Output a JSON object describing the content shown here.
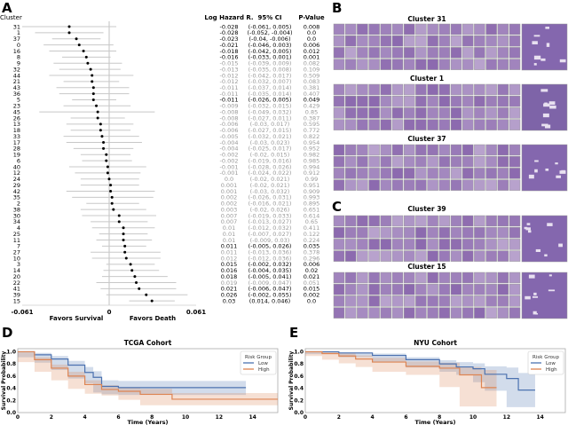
{
  "panel_labels": {
    "a": "A",
    "b": "B",
    "c": "C",
    "d": "D",
    "e": "E"
  },
  "colors": {
    "low": "#4c72b0",
    "high": "#dd8452",
    "significant_text": "#000000",
    "nonsignificant_text": "#9a9a9a",
    "whisker": "#c8c8c8",
    "tissue": "#8a6bb0"
  },
  "chart_data": [
    {
      "type": "forest",
      "row_header": "Cluster",
      "columns": [
        "Log Hazard R.",
        "95% CI",
        "P-Value"
      ],
      "xlim": [
        -0.061,
        0.061
      ],
      "xticks": [
        "-0.061",
        "0",
        "0.061"
      ],
      "annotations": {
        "left": "Favors Survival",
        "right": "Favors Death"
      },
      "rows": [
        {
          "cluster": "31",
          "lhr": -0.028,
          "lo": -0.061,
          "hi": 0.005,
          "p": "0.008",
          "ci": "(-0.061, 0.005)",
          "lhr_text": "-0.028",
          "sig": true
        },
        {
          "cluster": "1",
          "lhr": -0.028,
          "lo": -0.052,
          "hi": -0.004,
          "p": "0.0",
          "ci": "(-0.052, -0.004)",
          "lhr_text": "-0.028",
          "sig": true
        },
        {
          "cluster": "37",
          "lhr": -0.023,
          "lo": -0.04,
          "hi": -0.006,
          "p": "0.0",
          "ci": "(-0.04, -0.006)",
          "lhr_text": "-0.023",
          "sig": true
        },
        {
          "cluster": "0",
          "lhr": -0.021,
          "lo": -0.046,
          "hi": 0.003,
          "p": "0.006",
          "ci": "(-0.046, 0.003)",
          "lhr_text": "-0.021",
          "sig": true
        },
        {
          "cluster": "16",
          "lhr": -0.018,
          "lo": -0.042,
          "hi": 0.005,
          "p": "0.012",
          "ci": "(-0.042, 0.005)",
          "lhr_text": "-0.018",
          "sig": true
        },
        {
          "cluster": "8",
          "lhr": -0.016,
          "lo": -0.033,
          "hi": 0.001,
          "p": "0.001",
          "ci": "(-0.033, 0.001)",
          "lhr_text": "-0.016",
          "sig": true
        },
        {
          "cluster": "9",
          "lhr": -0.015,
          "lo": -0.039,
          "hi": 0.009,
          "p": "0.082",
          "ci": "(-0.039, 0.009)",
          "lhr_text": "-0.015",
          "sig": false
        },
        {
          "cluster": "32",
          "lhr": -0.013,
          "lo": -0.035,
          "hi": 0.008,
          "p": "0.109",
          "ci": "(-0.035, 0.008)",
          "lhr_text": "-0.013",
          "sig": false
        },
        {
          "cluster": "44",
          "lhr": -0.012,
          "lo": -0.042,
          "hi": 0.017,
          "p": "0.509",
          "ci": "(-0.042, 0.017)",
          "lhr_text": "-0.012",
          "sig": false
        },
        {
          "cluster": "21",
          "lhr": -0.012,
          "lo": -0.032,
          "hi": 0.007,
          "p": "0.083",
          "ci": "(-0.032, 0.007)",
          "lhr_text": "-0.012",
          "sig": false
        },
        {
          "cluster": "43",
          "lhr": -0.011,
          "lo": -0.037,
          "hi": 0.014,
          "p": "0.381",
          "ci": "(-0.037, 0.014)",
          "lhr_text": "-0.011",
          "sig": false
        },
        {
          "cluster": "36",
          "lhr": -0.011,
          "lo": -0.035,
          "hi": 0.014,
          "p": "0.407",
          "ci": "(-0.035, 0.014)",
          "lhr_text": "-0.011",
          "sig": false
        },
        {
          "cluster": "5",
          "lhr": -0.011,
          "lo": -0.026,
          "hi": 0.005,
          "p": "0.049",
          "ci": "(-0.026, 0.005)",
          "lhr_text": "-0.011",
          "sig": true
        },
        {
          "cluster": "23",
          "lhr": -0.009,
          "lo": -0.032,
          "hi": 0.015,
          "p": "0.429",
          "ci": "(-0.032, 0.015)",
          "lhr_text": "-0.009",
          "sig": false
        },
        {
          "cluster": "45",
          "lhr": -0.008,
          "lo": -0.049,
          "hi": 0.032,
          "p": "0.85",
          "ci": "(-0.049, 0.032)",
          "lhr_text": "-0.008",
          "sig": false
        },
        {
          "cluster": "26",
          "lhr": -0.008,
          "lo": -0.027,
          "hi": 0.011,
          "p": "0.387",
          "ci": "(-0.027, 0.011)",
          "lhr_text": "-0.008",
          "sig": false
        },
        {
          "cluster": "13",
          "lhr": -0.006,
          "lo": -0.03,
          "hi": 0.017,
          "p": "0.595",
          "ci": "(-0.03, 0.017)",
          "lhr_text": "-0.006",
          "sig": false
        },
        {
          "cluster": "18",
          "lhr": -0.006,
          "lo": -0.027,
          "hi": 0.015,
          "p": "0.772",
          "ci": "(-0.027, 0.015)",
          "lhr_text": "-0.006",
          "sig": false
        },
        {
          "cluster": "33",
          "lhr": -0.005,
          "lo": -0.032,
          "hi": 0.021,
          "p": "0.822",
          "ci": "(-0.032, 0.021)",
          "lhr_text": "-0.005",
          "sig": false
        },
        {
          "cluster": "17",
          "lhr": -0.004,
          "lo": -0.03,
          "hi": 0.023,
          "p": "0.954",
          "ci": "(-0.03, 0.023)",
          "lhr_text": "-0.004",
          "sig": false
        },
        {
          "cluster": "28",
          "lhr": -0.004,
          "lo": -0.025,
          "hi": 0.017,
          "p": "0.952",
          "ci": "(-0.025, 0.017)",
          "lhr_text": "-0.004",
          "sig": false
        },
        {
          "cluster": "19",
          "lhr": -0.002,
          "lo": -0.02,
          "hi": 0.015,
          "p": "0.982",
          "ci": "(-0.02, 0.015)",
          "lhr_text": "-0.002",
          "sig": false
        },
        {
          "cluster": "6",
          "lhr": -0.002,
          "lo": -0.019,
          "hi": 0.016,
          "p": "0.985",
          "ci": "(-0.019, 0.016)",
          "lhr_text": "-0.002",
          "sig": false
        },
        {
          "cluster": "40",
          "lhr": -0.001,
          "lo": -0.028,
          "hi": 0.026,
          "p": "0.994",
          "ci": "(-0.028, 0.026)",
          "lhr_text": "-0.001",
          "sig": false
        },
        {
          "cluster": "12",
          "lhr": -0.001,
          "lo": -0.024,
          "hi": 0.022,
          "p": "0.912",
          "ci": "(-0.024, 0.022)",
          "lhr_text": "-0.001",
          "sig": false
        },
        {
          "cluster": "24",
          "lhr": 0.0,
          "lo": -0.02,
          "hi": 0.021,
          "p": "0.99",
          "ci": "(-0.02, 0.021)",
          "lhr_text": "0.0",
          "sig": false
        },
        {
          "cluster": "29",
          "lhr": 0.001,
          "lo": -0.02,
          "hi": 0.021,
          "p": "0.951",
          "ci": "(-0.02, 0.021)",
          "lhr_text": "0.001",
          "sig": false
        },
        {
          "cluster": "42",
          "lhr": 0.001,
          "lo": -0.03,
          "hi": 0.032,
          "p": "0.909",
          "ci": "(-0.03, 0.032)",
          "lhr_text": "0.001",
          "sig": false
        },
        {
          "cluster": "35",
          "lhr": 0.002,
          "lo": -0.026,
          "hi": 0.031,
          "p": "0.993",
          "ci": "(-0.026, 0.031)",
          "lhr_text": "0.002",
          "sig": false
        },
        {
          "cluster": "2",
          "lhr": 0.002,
          "lo": -0.016,
          "hi": 0.021,
          "p": "0.895",
          "ci": "(-0.016, 0.021)",
          "lhr_text": "0.002",
          "sig": false
        },
        {
          "cluster": "38",
          "lhr": 0.003,
          "lo": -0.02,
          "hi": 0.026,
          "p": "0.651",
          "ci": "(-0.02, 0.026)",
          "lhr_text": "0.003",
          "sig": false
        },
        {
          "cluster": "30",
          "lhr": 0.007,
          "lo": -0.019,
          "hi": 0.033,
          "p": "0.614",
          "ci": "(-0.019, 0.033)",
          "lhr_text": "0.007",
          "sig": false
        },
        {
          "cluster": "34",
          "lhr": 0.007,
          "lo": -0.013,
          "hi": 0.027,
          "p": "0.65",
          "ci": "(-0.013, 0.027)",
          "lhr_text": "0.007",
          "sig": false
        },
        {
          "cluster": "4",
          "lhr": 0.01,
          "lo": -0.012,
          "hi": 0.032,
          "p": "0.411",
          "ci": "(-0.012, 0.032)",
          "lhr_text": "0.01",
          "sig": false
        },
        {
          "cluster": "25",
          "lhr": 0.01,
          "lo": -0.007,
          "hi": 0.027,
          "p": "0.122",
          "ci": "(-0.007, 0.027)",
          "lhr_text": "0.01",
          "sig": false
        },
        {
          "cluster": "11",
          "lhr": 0.01,
          "lo": -0.009,
          "hi": 0.03,
          "p": "0.224",
          "ci": "(-0.009, 0.03)",
          "lhr_text": "0.01",
          "sig": false
        },
        {
          "cluster": "7",
          "lhr": 0.011,
          "lo": -0.005,
          "hi": 0.026,
          "p": "0.035",
          "ci": "(-0.005, 0.026)",
          "lhr_text": "0.011",
          "sig": true
        },
        {
          "cluster": "27",
          "lhr": 0.011,
          "lo": -0.013,
          "hi": 0.036,
          "p": "0.378",
          "ci": "(-0.013, 0.036)",
          "lhr_text": "0.011",
          "sig": false
        },
        {
          "cluster": "10",
          "lhr": 0.012,
          "lo": -0.012,
          "hi": 0.036,
          "p": "0.296",
          "ci": "(-0.012, 0.036)",
          "lhr_text": "0.012",
          "sig": false
        },
        {
          "cluster": "3",
          "lhr": 0.015,
          "lo": -0.002,
          "hi": 0.032,
          "p": "0.006",
          "ci": "(-0.002, 0.032)",
          "lhr_text": "0.015",
          "sig": true
        },
        {
          "cluster": "14",
          "lhr": 0.016,
          "lo": -0.004,
          "hi": 0.035,
          "p": "0.02",
          "ci": "(-0.004, 0.035)",
          "lhr_text": "0.016",
          "sig": true
        },
        {
          "cluster": "20",
          "lhr": 0.018,
          "lo": -0.005,
          "hi": 0.041,
          "p": "0.021",
          "ci": "(-0.005, 0.041)",
          "lhr_text": "0.018",
          "sig": true
        },
        {
          "cluster": "22",
          "lhr": 0.019,
          "lo": -0.009,
          "hi": 0.047,
          "p": "0.051",
          "ci": "(-0.009, 0.047)",
          "lhr_text": "0.019",
          "sig": false
        },
        {
          "cluster": "41",
          "lhr": 0.021,
          "lo": -0.006,
          "hi": 0.047,
          "p": "0.015",
          "ci": "(-0.006, 0.047)",
          "lhr_text": "0.021",
          "sig": true
        },
        {
          "cluster": "39",
          "lhr": 0.026,
          "lo": -0.002,
          "hi": 0.055,
          "p": "0.002",
          "ci": "(-0.002, 0.055)",
          "lhr_text": "0.026",
          "sig": true
        },
        {
          "cluster": "15",
          "lhr": 0.03,
          "lo": 0.014,
          "hi": 0.046,
          "p": "0.0",
          "ci": "(0.014, 0.046)",
          "lhr_text": "0.03",
          "sig": true
        }
      ]
    },
    {
      "type": "line",
      "subtype": "kaplan-meier",
      "title": "TCGA Cohort",
      "xlabel": "Time (Years)",
      "ylabel": "Survival Probability",
      "xlim": [
        0,
        15.5
      ],
      "ylim": [
        0,
        1.05
      ],
      "xticks": [
        "0",
        "2",
        "4",
        "6",
        "8",
        "10",
        "12",
        "14"
      ],
      "yticks": [
        "0.0",
        "0.2",
        "0.4",
        "0.6",
        "0.8",
        "1.0"
      ],
      "legend": {
        "title": "Risk Group",
        "position": "top-right"
      },
      "series": [
        {
          "name": "Low",
          "x": [
            0,
            1,
            2,
            3,
            4,
            4.5,
            5,
            6,
            13.6
          ],
          "y": [
            1,
            0.95,
            0.88,
            0.78,
            0.66,
            0.58,
            0.43,
            0.41,
            0.41
          ],
          "lower": [
            1,
            0.91,
            0.82,
            0.7,
            0.56,
            0.48,
            0.33,
            0.3,
            0.29
          ],
          "upper": [
            1,
            0.98,
            0.93,
            0.85,
            0.75,
            0.68,
            0.53,
            0.52,
            0.52
          ]
        },
        {
          "name": "High",
          "x": [
            0,
            1,
            2,
            3,
            4,
            5,
            6,
            7.3,
            9.2,
            15.5
          ],
          "y": [
            1,
            0.87,
            0.73,
            0.6,
            0.46,
            0.38,
            0.35,
            0.3,
            0.22,
            0.22
          ],
          "lower": [
            1,
            0.83,
            0.67,
            0.53,
            0.39,
            0.31,
            0.28,
            0.21,
            0.12,
            0.12
          ],
          "upper": [
            1,
            0.91,
            0.79,
            0.67,
            0.53,
            0.45,
            0.42,
            0.39,
            0.32,
            0.32
          ]
        }
      ]
    },
    {
      "type": "line",
      "subtype": "kaplan-meier",
      "title": "NYU Cohort",
      "xlabel": "Time (Years)",
      "ylabel": "Survival Probability",
      "xlim": [
        0,
        15.5
      ],
      "ylim": [
        0,
        1.05
      ],
      "xticks": [
        "0",
        "2",
        "4",
        "6",
        "8",
        "10",
        "12",
        "14"
      ],
      "yticks": [
        "0.0",
        "0.2",
        "0.4",
        "0.6",
        "0.8",
        "1.0"
      ],
      "legend": {
        "title": "Risk Group",
        "position": "top-right"
      },
      "series": [
        {
          "name": "Low",
          "x": [
            0,
            2,
            4,
            6,
            8,
            9,
            10,
            10.7,
            12,
            12.7,
            13.7
          ],
          "y": [
            1,
            0.98,
            0.94,
            0.87,
            0.8,
            0.75,
            0.72,
            0.63,
            0.56,
            0.37,
            0.37
          ],
          "lower": [
            1,
            0.96,
            0.91,
            0.83,
            0.74,
            0.67,
            0.62,
            0.5,
            0.36,
            0.09,
            0.09
          ],
          "upper": [
            1,
            0.99,
            0.97,
            0.91,
            0.86,
            0.83,
            0.81,
            0.76,
            0.74,
            0.65,
            0.65
          ]
        },
        {
          "name": "High",
          "x": [
            0,
            1,
            2,
            3,
            4,
            6,
            8,
            9.2,
            10.5,
            11.4
          ],
          "y": [
            1,
            0.97,
            0.93,
            0.88,
            0.83,
            0.76,
            0.73,
            0.62,
            0.41,
            0.41
          ],
          "lower": [
            1,
            0.93,
            0.87,
            0.81,
            0.75,
            0.67,
            0.62,
            0.42,
            0.1,
            0.1
          ],
          "upper": [
            1,
            0.99,
            0.97,
            0.94,
            0.9,
            0.84,
            0.82,
            0.75,
            0.7,
            0.7
          ]
        }
      ]
    }
  ],
  "tile_panels": [
    {
      "title": "Cluster 31"
    },
    {
      "title": "Cluster 1"
    },
    {
      "title": "Cluster 37"
    },
    {
      "title": "Cluster 39"
    },
    {
      "title": "Cluster 15"
    }
  ]
}
